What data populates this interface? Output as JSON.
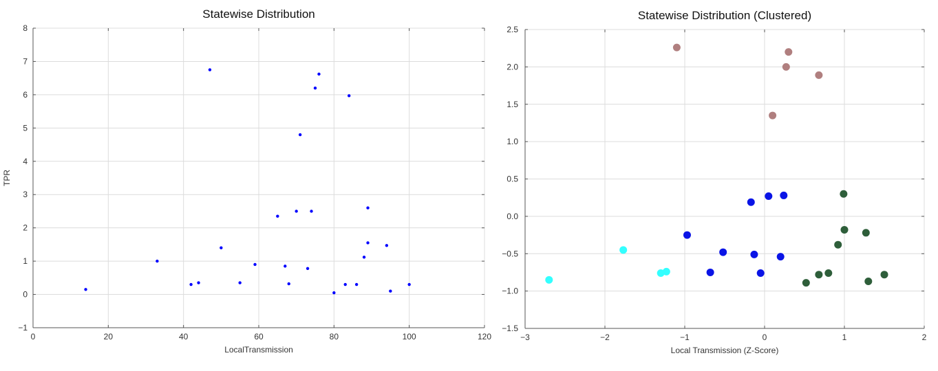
{
  "chart_data": [
    {
      "type": "scatter",
      "title": "Statewise Distribution",
      "xlabel": "LocalTransmission",
      "ylabel": "TPR",
      "xlim": [
        0,
        120
      ],
      "ylim": [
        -1,
        8
      ],
      "xticks": [
        0,
        20,
        40,
        60,
        80,
        100,
        120
      ],
      "xtick_labels": [
        "0",
        "20",
        "40",
        "60",
        "80",
        "100",
        "120"
      ],
      "yticks": [
        -1,
        0,
        1,
        2,
        3,
        4,
        5,
        6,
        7,
        8
      ],
      "ytick_labels": [
        "−1",
        "0",
        "1",
        "2",
        "3",
        "4",
        "5",
        "6",
        "7",
        "8"
      ],
      "grid": true,
      "series": [
        {
          "color": "#0000ff",
          "points": [
            [
              14,
              0.15
            ],
            [
              33,
              1.0
            ],
            [
              42,
              0.3
            ],
            [
              44,
              0.35
            ],
            [
              47,
              6.75
            ],
            [
              50,
              1.4
            ],
            [
              55,
              0.35
            ],
            [
              59,
              0.9
            ],
            [
              65,
              2.35
            ],
            [
              67,
              0.85
            ],
            [
              68,
              0.32
            ],
            [
              70,
              2.5
            ],
            [
              71,
              4.8
            ],
            [
              73,
              0.78
            ],
            [
              74,
              2.5
            ],
            [
              75,
              6.2
            ],
            [
              76,
              6.62
            ],
            [
              80,
              0.05
            ],
            [
              83,
              0.3
            ],
            [
              84,
              5.97
            ],
            [
              86,
              0.3
            ],
            [
              88,
              1.12
            ],
            [
              89,
              2.6
            ],
            [
              89,
              1.55
            ],
            [
              94,
              1.47
            ],
            [
              95,
              0.1
            ],
            [
              100,
              0.3
            ]
          ]
        }
      ]
    },
    {
      "type": "scatter",
      "title": "Statewise Distribution (Clustered)",
      "xlabel": "Local Transmission (Z-Score)",
      "ylabel": "",
      "xlim": [
        -3,
        2
      ],
      "ylim": [
        -1.5,
        2.5
      ],
      "xticks": [
        -3,
        -2,
        -1,
        0,
        1,
        2
      ],
      "xtick_labels": [
        "−3",
        "−2",
        "−1",
        "0",
        "1",
        "2"
      ],
      "yticks": [
        -1.5,
        -1.0,
        -0.5,
        0.0,
        0.5,
        1.0,
        1.5,
        2.0,
        2.5
      ],
      "ytick_labels": [
        "−1.5",
        "−1.0",
        "−0.5",
        "0.0",
        "0.5",
        "1.0",
        "1.5",
        "2.0",
        "2.5"
      ],
      "grid": true,
      "series": [
        {
          "color": "#b07f7f",
          "points": [
            [
              -1.1,
              2.26
            ],
            [
              0.3,
              2.2
            ],
            [
              0.27,
              2.0
            ],
            [
              0.68,
              1.89
            ],
            [
              0.1,
              1.35
            ]
          ]
        },
        {
          "color": "#0a14e6",
          "points": [
            [
              -0.17,
              0.19
            ],
            [
              0.05,
              0.27
            ],
            [
              0.24,
              0.28
            ],
            [
              -0.97,
              -0.25
            ],
            [
              -0.52,
              -0.48
            ],
            [
              -0.13,
              -0.51
            ],
            [
              0.2,
              -0.54
            ],
            [
              -0.68,
              -0.75
            ],
            [
              -0.05,
              -0.76
            ]
          ]
        },
        {
          "color": "#2e5e3a",
          "points": [
            [
              0.99,
              0.3
            ],
            [
              1.0,
              -0.18
            ],
            [
              1.27,
              -0.22
            ],
            [
              0.92,
              -0.38
            ],
            [
              0.52,
              -0.89
            ],
            [
              0.68,
              -0.78
            ],
            [
              0.8,
              -0.76
            ],
            [
              1.3,
              -0.87
            ],
            [
              1.5,
              -0.78
            ]
          ]
        },
        {
          "color": "#33ffff",
          "points": [
            [
              -1.77,
              -0.45
            ],
            [
              -1.3,
              -0.76
            ],
            [
              -1.23,
              -0.74
            ],
            [
              -2.7,
              -0.85
            ]
          ]
        }
      ]
    }
  ]
}
